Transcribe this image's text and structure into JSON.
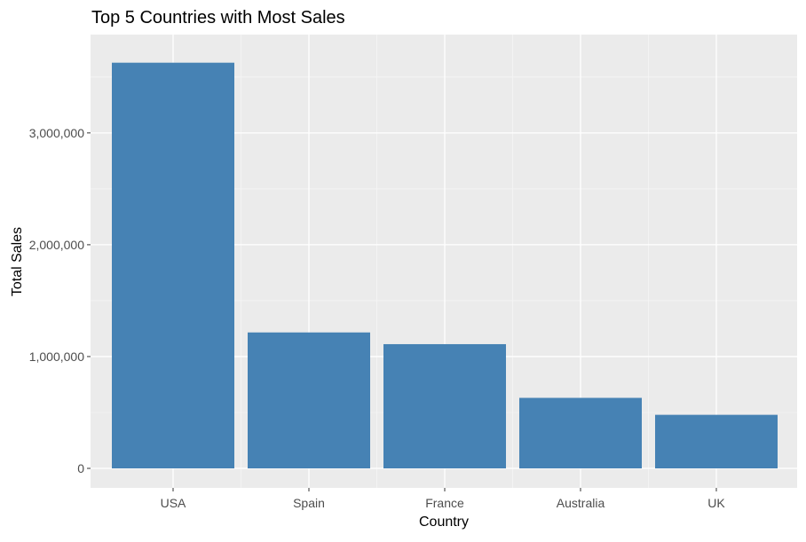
{
  "chart_data": {
    "type": "bar",
    "title": "Top 5 Countries with Most Sales",
    "xlabel": "Country",
    "ylabel": "Total Sales",
    "categories": [
      "USA",
      "Spain",
      "France",
      "Australia",
      "UK"
    ],
    "values": [
      3627982,
      1215686,
      1110917,
      630623,
      478880
    ],
    "ylim": [
      0,
      3800000
    ],
    "yticks": [
      0,
      1000000,
      2000000,
      3000000
    ],
    "ytick_labels": [
      "0",
      "1,000,000",
      "2,000,000",
      "3,000,000"
    ],
    "grid": true,
    "legend": "none",
    "colors": {
      "bar": "#4682B4",
      "panel_background": "#EBEBEB",
      "grid_major": "#FFFFFF",
      "grid_minor": "#F5F5F5"
    }
  }
}
